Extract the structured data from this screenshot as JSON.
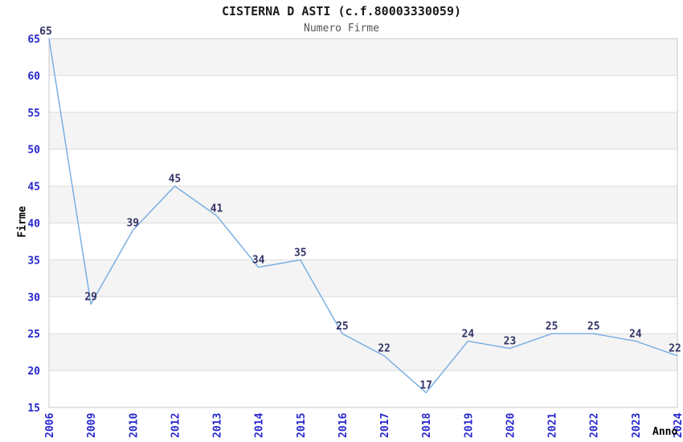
{
  "chart_data": {
    "type": "line",
    "title": "CISTERNA D ASTI (c.f.80003330059)",
    "subtitle": "Numero Firme",
    "xlabel": "Anno",
    "ylabel": "Firme",
    "categories": [
      "2006",
      "2009",
      "2010",
      "2012",
      "2013",
      "2014",
      "2015",
      "2016",
      "2017",
      "2018",
      "2019",
      "2020",
      "2021",
      "2022",
      "2023",
      "2024"
    ],
    "values": [
      65,
      29,
      39,
      45,
      41,
      34,
      35,
      25,
      22,
      17,
      24,
      23,
      25,
      25,
      24,
      22
    ],
    "ylim": [
      15,
      65
    ],
    "ytick_step": 5,
    "grid": "horizontal-lines-with-alternating-bands",
    "legend": "none",
    "colors": {
      "line": "#73abe2",
      "band": "#f4f4f4",
      "grid": "#dcdcdc",
      "border": "#c9c9c9",
      "axis_tick": "#2727cd",
      "data_label": "#333366",
      "axis_title": "#000000",
      "subtitle": "#555555",
      "background": "#ffffff"
    }
  }
}
